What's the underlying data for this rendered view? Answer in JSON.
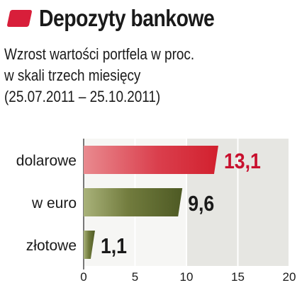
{
  "header": {
    "title": "Depozyty bankowe",
    "subtitle_lines": [
      "Wzrost wartości portfela w proc.",
      "w skali trzech miesięcy",
      "(25.07.2011 – 25.10.2011)"
    ]
  },
  "colors": {
    "accent": "#d81e3a",
    "bar_red": "#d4202f",
    "bar_green": "#55612a",
    "value_red": "#c8102e",
    "value_dark": "#1a1a1a",
    "panel_light": "#f6f6f4",
    "panel_dark": "#e6e6e2"
  },
  "chart_data": {
    "type": "bar",
    "orientation": "horizontal",
    "categories": [
      "dolarowe",
      "w euro",
      "złotowe"
    ],
    "values": [
      13.1,
      9.6,
      1.1
    ],
    "value_labels": [
      "13,1",
      "9,6",
      "1,1"
    ],
    "bar_colors": [
      "red",
      "green",
      "green"
    ],
    "xlim": [
      0,
      20
    ],
    "x_ticks": [
      "0",
      "5",
      "10",
      "15",
      "20"
    ],
    "grid": true,
    "title": "Depozyty bankowe",
    "xlabel": "",
    "ylabel": ""
  }
}
